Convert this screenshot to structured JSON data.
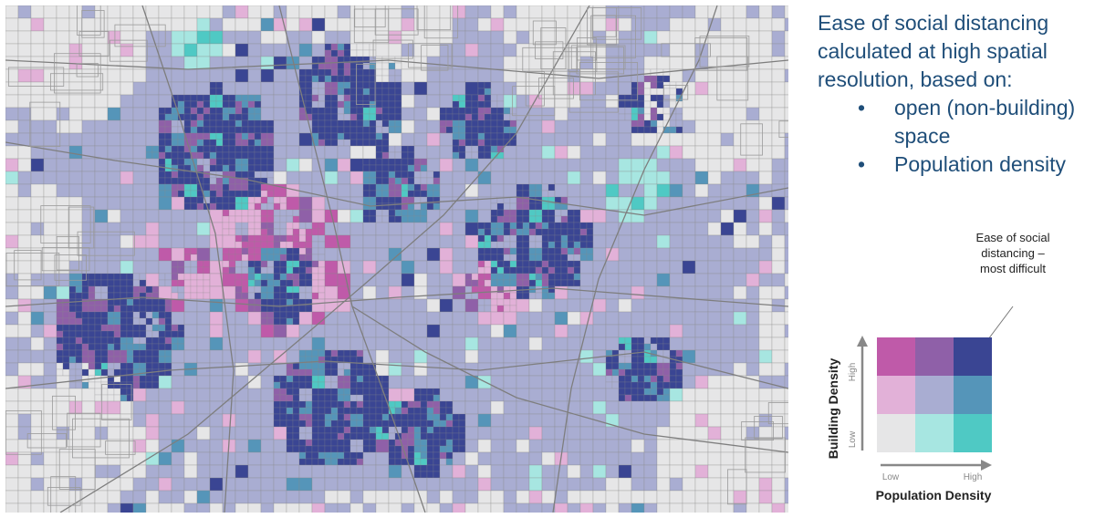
{
  "heading": {
    "lines": [
      "Ease of social distancing",
      "calculated at high spatial",
      "resolution, based on:"
    ],
    "bullets": [
      {
        "lines": [
          "open (non-building)",
          "space"
        ]
      },
      {
        "lines": [
          "Population density"
        ]
      }
    ],
    "bullet_char": "•"
  },
  "legend": {
    "callout": [
      "Ease of social",
      "distancing –",
      "most difficult"
    ],
    "y_axis_title": "Building Density",
    "y_high": "High",
    "y_low": "Low",
    "x_axis_title": "Population Density",
    "x_low": "Low",
    "x_high": "High",
    "grid_colors": [
      [
        "#bf5aa9",
        "#8f60a8",
        "#3a4593"
      ],
      [
        "#e2b1d8",
        "#a9add2",
        "#5595b9"
      ],
      [
        "#e6e6e7",
        "#a7e6e1",
        "#4fc9c4"
      ]
    ]
  },
  "map": {
    "background": "#e9e9ea",
    "boundary_color": "#8a8a8a"
  }
}
